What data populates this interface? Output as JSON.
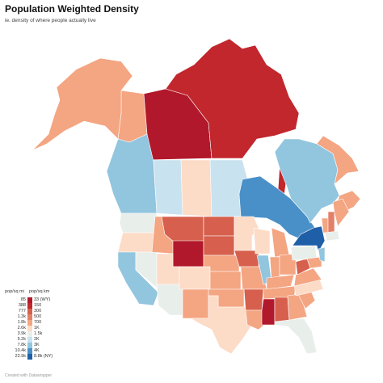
{
  "title": "Population Weighted Density",
  "subtitle": "ie. density of where people actually live",
  "footer": "Created with Datawrapper",
  "legend": {
    "header_mi": "pop/sq mi",
    "header_km": "pop/sq km",
    "items": [
      {
        "mi": "85",
        "km": "33 (WY)",
        "color": "#b2182b"
      },
      {
        "mi": "388",
        "km": "150",
        "color": "#c1272d"
      },
      {
        "mi": "777",
        "km": "300",
        "color": "#d6604d"
      },
      {
        "mi": "1.3k",
        "km": "500",
        "color": "#e58068"
      },
      {
        "mi": "1.8k",
        "km": "700",
        "color": "#f4a582"
      },
      {
        "mi": "2.6k",
        "km": "1K",
        "color": "#fcdbc7"
      },
      {
        "mi": "3.9k",
        "km": "1.5k",
        "color": "#e8eeea"
      },
      {
        "mi": "5.2k",
        "km": "2K",
        "color": "#c9e2ef"
      },
      {
        "mi": "7.8k",
        "km": "3K",
        "color": "#92c5de"
      },
      {
        "mi": "10.4k",
        "km": "4K",
        "color": "#4a90c8"
      },
      {
        "mi": "22.9k",
        "km": "8.8k (NY)",
        "color": "#1f5fa8"
      }
    ]
  },
  "map": {
    "regions": [
      {
        "name": "Yukon",
        "color": "#f4a582"
      },
      {
        "name": "Northwest Territories",
        "color": "#b2182b"
      },
      {
        "name": "Nunavut",
        "color": "#c1272d"
      },
      {
        "name": "Alaska",
        "color": "#f4a582"
      },
      {
        "name": "British Columbia",
        "color": "#92c5de"
      },
      {
        "name": "Alberta",
        "color": "#c9e2ef"
      },
      {
        "name": "Saskatchewan",
        "color": "#fcdbc7"
      },
      {
        "name": "Manitoba",
        "color": "#c9e2ef"
      },
      {
        "name": "Ontario",
        "color": "#4a90c8"
      },
      {
        "name": "Quebec",
        "color": "#92c5de"
      },
      {
        "name": "Newfoundland and Labrador",
        "color": "#f4a582"
      },
      {
        "name": "Maritimes",
        "color": "#f4a582"
      },
      {
        "name": "Washington",
        "color": "#e8eeea"
      },
      {
        "name": "Oregon",
        "color": "#fcdbc7"
      },
      {
        "name": "California",
        "color": "#92c5de"
      },
      {
        "name": "Nevada",
        "color": "#e8eeea"
      },
      {
        "name": "Idaho",
        "color": "#f4a582"
      },
      {
        "name": "Montana",
        "color": "#d6604d"
      },
      {
        "name": "Wyoming",
        "color": "#b2182b"
      },
      {
        "name": "Utah",
        "color": "#fcdbc7"
      },
      {
        "name": "Arizona",
        "color": "#e8eeea"
      },
      {
        "name": "Colorado",
        "color": "#fcdbc7"
      },
      {
        "name": "New Mexico",
        "color": "#f4a582"
      },
      {
        "name": "North Dakota",
        "color": "#d6604d"
      },
      {
        "name": "South Dakota",
        "color": "#d6604d"
      },
      {
        "name": "Nebraska",
        "color": "#f4a582"
      },
      {
        "name": "Kansas",
        "color": "#f4a582"
      },
      {
        "name": "Oklahoma",
        "color": "#f4a582"
      },
      {
        "name": "Texas",
        "color": "#fcdbc7"
      },
      {
        "name": "Minnesota",
        "color": "#fcdbc7"
      },
      {
        "name": "Iowa",
        "color": "#d6604d"
      },
      {
        "name": "Missouri",
        "color": "#f4a582"
      },
      {
        "name": "Arkansas",
        "color": "#d6604d"
      },
      {
        "name": "Louisiana",
        "color": "#f4a582"
      },
      {
        "name": "Wisconsin",
        "color": "#fcdbc7"
      },
      {
        "name": "Illinois",
        "color": "#92c5de"
      },
      {
        "name": "Michigan",
        "color": "#f4a582"
      },
      {
        "name": "Indiana",
        "color": "#f4a582"
      },
      {
        "name": "Ohio",
        "color": "#f4a582"
      },
      {
        "name": "Kentucky",
        "color": "#f4a582"
      },
      {
        "name": "Tennessee",
        "color": "#f4a582"
      },
      {
        "name": "Mississippi",
        "color": "#b2182b"
      },
      {
        "name": "Alabama",
        "color": "#d6604d"
      },
      {
        "name": "Georgia",
        "color": "#f4a582"
      },
      {
        "name": "Florida",
        "color": "#e8eeea"
      },
      {
        "name": "South Carolina",
        "color": "#f4a582"
      },
      {
        "name": "North Carolina",
        "color": "#fcdbc7"
      },
      {
        "name": "Virginia",
        "color": "#f4a582"
      },
      {
        "name": "West Virginia",
        "color": "#d6604d"
      },
      {
        "name": "Pennsylvania",
        "color": "#e8eeea"
      },
      {
        "name": "New York",
        "color": "#1f5fa8"
      },
      {
        "name": "Maryland",
        "color": "#f4a582"
      },
      {
        "name": "New Jersey",
        "color": "#92c5de"
      },
      {
        "name": "Vermont",
        "color": "#f4a582"
      },
      {
        "name": "New Hampshire",
        "color": "#e58068"
      },
      {
        "name": "Maine",
        "color": "#f4a582"
      },
      {
        "name": "Massachusetts",
        "color": "#e8eeea"
      }
    ]
  }
}
